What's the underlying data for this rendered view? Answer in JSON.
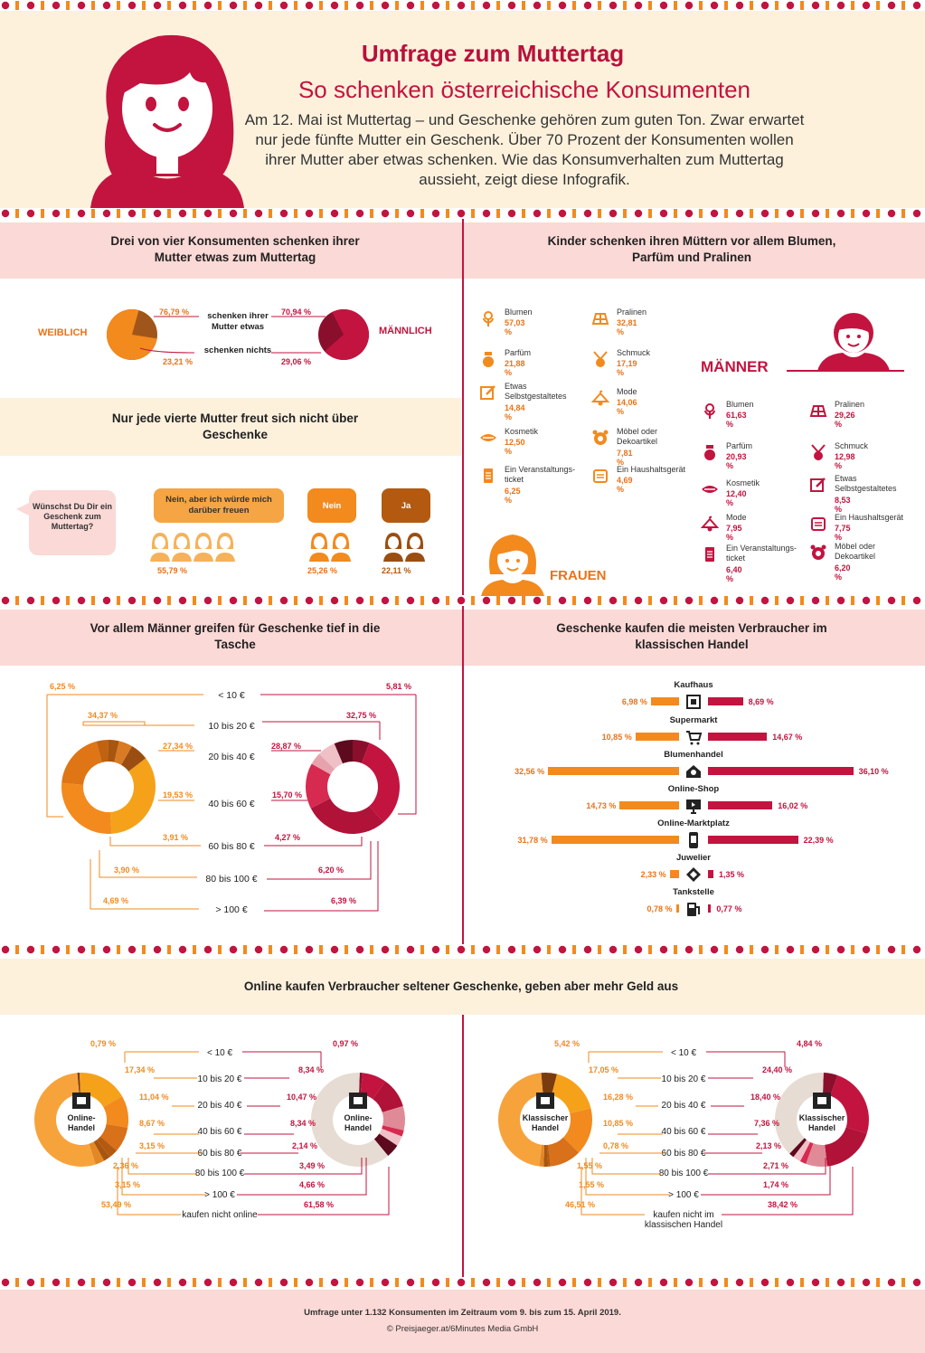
{
  "header": {
    "title": "Umfrage zum Muttertag",
    "subtitle": "So schenken österreichische Konsumenten",
    "intro": "Am 12. Mai ist Muttertag – und Geschenke gehören zum guten Ton. Zwar erwartet nur jede fünfte Mutter ein Geschenk. Über 70 Prozent der Konsumenten wollen ihrer Mutter aber etwas schenken. Wie das Konsumverhalten zum Muttertag aussieht, zeigt diese Infografik."
  },
  "colors": {
    "orange": "#f28a1e",
    "red": "#c2143f",
    "cream": "#fdf1dc",
    "pink": "#fbd9d6"
  },
  "s1": {
    "title": "Drei von vier Konsumenten schenken ihrer Mutter etwas zum Muttertag",
    "weiblich": "WEIBLICH",
    "maennlich": "MÄNNLICH",
    "label_yes": "schenken ihrer Mutter etwas",
    "label_no": "schenken nichts",
    "w_yes": "76,79 %",
    "w_no": "23,21 %",
    "m_yes": "70,94 %",
    "m_no": "29,06 %",
    "w_yes_val": 76.79,
    "m_yes_val": 70.94
  },
  "s2": {
    "title": "Nur jede vierte Mutter freut sich nicht über Geschenke",
    "question": "Wünschst Du Dir ein Geschenk zum Muttertag?",
    "a1": "Nein, aber ich würde mich darüber freuen",
    "a1_pct": "55,79 %",
    "a2": "Nein",
    "a2_pct": "25,26 %",
    "a3": "Ja",
    "a3_pct": "22,11 %"
  },
  "s3": {
    "title": "Kinder schenken ihren Müttern vor allem Blumen, Parfüm und Pralinen",
    "frauen_label": "FRAUEN",
    "maenner_label": "MÄNNER",
    "frauen": [
      {
        "icon": "flower-icon",
        "name": "Blumen",
        "pct": "57,03 %"
      },
      {
        "icon": "praline-icon",
        "name": "Pralinen",
        "pct": "32,81 %"
      },
      {
        "icon": "perfume-icon",
        "name": "Parfüm",
        "pct": "21,88 %"
      },
      {
        "icon": "jewelry-icon",
        "name": "Schmuck",
        "pct": "17,19 %"
      },
      {
        "icon": "selfmade-icon",
        "name": "Etwas Selbstgestaltetes",
        "pct": "14,84 %"
      },
      {
        "icon": "fashion-icon",
        "name": "Mode",
        "pct": "14,06 %"
      },
      {
        "icon": "cosmetics-icon",
        "name": "Kosmetik",
        "pct": "12,50 %"
      },
      {
        "icon": "decor-icon",
        "name": "Möbel oder Dekoartikel",
        "pct": "7,81 %"
      },
      {
        "icon": "ticket-icon",
        "name": "Ein Veranstaltungs-ticket",
        "pct": "6,25 %"
      },
      {
        "icon": "appliance-icon",
        "name": "Ein Haushaltsgerät",
        "pct": "4,69 %"
      }
    ],
    "maenner": [
      {
        "icon": "flower-icon",
        "name": "Blumen",
        "pct": "61,63 %"
      },
      {
        "icon": "praline-icon",
        "name": "Pralinen",
        "pct": "29,26 %"
      },
      {
        "icon": "perfume-icon",
        "name": "Parfüm",
        "pct": "20,93 %"
      },
      {
        "icon": "jewelry-icon",
        "name": "Schmuck",
        "pct": "12,98 %"
      },
      {
        "icon": "cosmetics-icon",
        "name": "Kosmetik",
        "pct": "12,40 %"
      },
      {
        "icon": "selfmade-icon",
        "name": "Etwas Selbstgestaltetes",
        "pct": "8,53 %"
      },
      {
        "icon": "fashion-icon",
        "name": "Mode",
        "pct": "7,95 %"
      },
      {
        "icon": "appliance-icon",
        "name": "Ein Haushaltsgerät",
        "pct": "7,75 %"
      },
      {
        "icon": "ticket-icon",
        "name": "Ein Veranstaltungs-ticket",
        "pct": "6,40 %"
      },
      {
        "icon": "decor-icon",
        "name": "Möbel oder Dekoartikel",
        "pct": "6,20 %"
      }
    ]
  },
  "s4": {
    "title": "Vor allem Männer greifen für Geschenke tief in die Tasche",
    "frauen": "FRAUEN",
    "maenner": "MÄNNER",
    "categories": [
      "< 10 €",
      "10 bis 20 €",
      "20 bis 40 €",
      "40 bis 60 €",
      "60 bis 80 €",
      "80 bis 100 €",
      "> 100 €"
    ],
    "f_pct": [
      "6,25 %",
      "34,37 %",
      "27,34 %",
      "19,53 %",
      "3,91 %",
      "3,90 %",
      "4,69 %"
    ],
    "m_pct": [
      "5,81 %",
      "32,75 %",
      "28,87 %",
      "15,70 %",
      "4,27 %",
      "6,20 %",
      "6,39 %"
    ]
  },
  "s5": {
    "title": "Geschenke kaufen die meisten Verbraucher im klassischen Handel",
    "rows": [
      {
        "name": "Kaufhaus",
        "icon": "store-icon",
        "f": "6,98 %",
        "m": "8,69 %",
        "fv": 6.98,
        "mv": 8.69
      },
      {
        "name": "Supermarkt",
        "icon": "cart-icon",
        "f": "10,85 %",
        "m": "14,67 %",
        "fv": 10.85,
        "mv": 14.67
      },
      {
        "name": "Blumenhandel",
        "icon": "flower-shop-icon",
        "f": "32,56 %",
        "m": "36,10 %",
        "fv": 32.56,
        "mv": 36.1
      },
      {
        "name": "Online-Shop",
        "icon": "computer-icon",
        "f": "14,73 %",
        "m": "16,02 %",
        "fv": 14.73,
        "mv": 16.02
      },
      {
        "name": "Online-Marktplatz",
        "icon": "phone-icon",
        "f": "31,78 %",
        "m": "22,39 %",
        "fv": 31.78,
        "mv": 22.39
      },
      {
        "name": "Juwelier",
        "icon": "diamond-icon",
        "f": "2,33 %",
        "m": "1,35 %",
        "fv": 2.33,
        "mv": 1.35
      },
      {
        "name": "Tankstelle",
        "icon": "fuel-icon",
        "f": "0,78 %",
        "m": "0,77 %",
        "fv": 0.78,
        "mv": 0.77
      }
    ]
  },
  "s6": {
    "title": "Online kaufen Verbraucher seltener Geschenke, geben aber mehr Geld aus",
    "online_label": "Online-Handel",
    "klassisch_label": "Klassischer Handel",
    "online_categories": [
      "< 10 €",
      "10 bis 20 €",
      "20 bis 40 €",
      "40 bis 60 €",
      "60 bis 80 €",
      "80 bis 100 €",
      "> 100 €",
      "kaufen nicht online"
    ],
    "online_f": [
      "0,79 %",
      "17,34 %",
      "11,04 %",
      "8,67 %",
      "3,15 %",
      "2,36 %",
      "3,15 %",
      "53,49 %"
    ],
    "online_m": [
      "0,97 %",
      "8,34 %",
      "10,47 %",
      "8,34 %",
      "2,14 %",
      "3,49 %",
      "4,66 %",
      "61,58 %"
    ],
    "klass_categories": [
      "< 10 €",
      "10 bis 20 €",
      "20 bis 40 €",
      "40 bis 60 €",
      "60 bis 80 €",
      "80 bis 100 €",
      "> 100 €",
      "kaufen nicht im klassischen Handel"
    ],
    "klass_f": [
      "5,42 %",
      "17,05 %",
      "16,28 %",
      "10,85 %",
      "0,78 %",
      "1,55 %",
      "1,55 %",
      "46,51 %"
    ],
    "klass_m": [
      "4,84 %",
      "24,40 %",
      "18,40 %",
      "7,36 %",
      "2,13 %",
      "2,71 %",
      "1,74 %",
      "38,42 %"
    ]
  },
  "footer": {
    "note": "Umfrage unter 1.132 Konsumenten im Zeitraum vom 9. bis zum 15. April 2019.",
    "copyright": "© Preisjaeger.at/6Minutes Media GmbH"
  }
}
